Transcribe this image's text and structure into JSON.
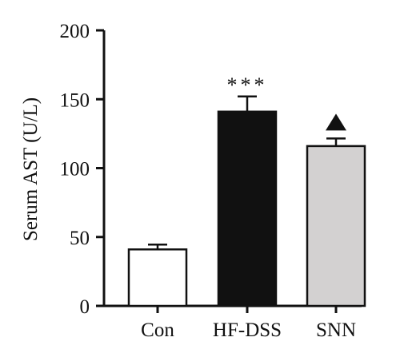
{
  "chart_data": {
    "type": "bar",
    "ylabel": "Serum AST (U/L)",
    "xlabel": "",
    "ylim": [
      0,
      200
    ],
    "yticks": [
      0,
      50,
      100,
      150,
      200
    ],
    "grid": false,
    "categories": [
      "Con",
      "HF-DSS",
      "SNN"
    ],
    "values": [
      41,
      141,
      116
    ],
    "errors": [
      3.5,
      11,
      5.5
    ],
    "bar_colors": [
      "#ffffff",
      "#111111",
      "#d3d1d1"
    ],
    "annotations": [
      {
        "category": "HF-DSS",
        "text": "***"
      },
      {
        "category": "SNN",
        "text": "▲"
      }
    ]
  }
}
